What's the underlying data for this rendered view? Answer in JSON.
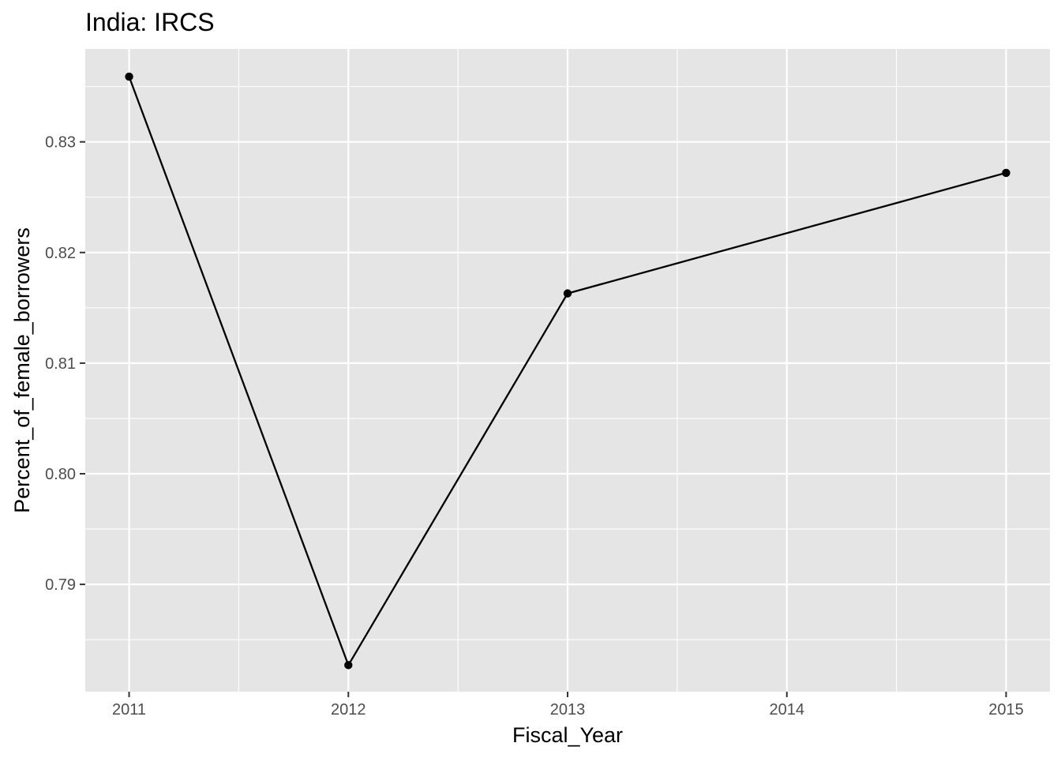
{
  "chart_data": {
    "type": "line",
    "title": "India:  IRCS",
    "xlabel": "Fiscal_Year",
    "ylabel": "Percent_of_female_borrowers",
    "x": [
      2011,
      2012,
      2013,
      2015
    ],
    "series": [
      {
        "values": [
          0.8359,
          0.7827,
          0.8163,
          0.8272
        ]
      }
    ],
    "x_ticks": [
      2011,
      2012,
      2013,
      2014,
      2015
    ],
    "x_tick_labels": [
      "2011",
      "2012",
      "2013",
      "2014",
      "2015"
    ],
    "y_ticks": [
      0.79,
      0.8,
      0.81,
      0.82,
      0.83
    ],
    "y_tick_labels": [
      "0.79",
      "0.80",
      "0.81",
      "0.82",
      "0.83"
    ],
    "xlim": [
      2010.8,
      2015.2
    ],
    "ylim": [
      0.7803,
      0.8384
    ],
    "grid": true,
    "colors": {
      "panel": "#e5e5e5",
      "grid": "#ffffff",
      "line": "#000000",
      "point": "#000000"
    }
  }
}
